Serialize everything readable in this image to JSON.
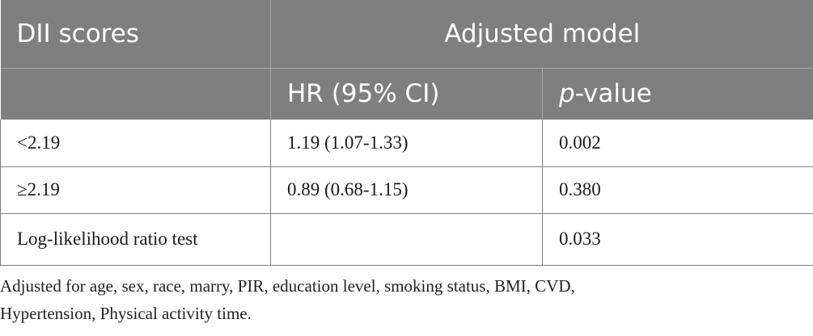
{
  "table": {
    "header": {
      "col1_label": "DII scores",
      "group_label": "Adjusted model",
      "hr_label": "HR (95% CI)",
      "p_prefix": "p",
      "p_suffix": "-value"
    },
    "rows": [
      {
        "label": "<2.19",
        "hr": "1.19 (1.07-1.33)",
        "p": "0.002"
      },
      {
        "label": "≥2.19",
        "hr": "0.89 (0.68-1.15)",
        "p": "0.380"
      },
      {
        "label": "Log-likelihood ratio test",
        "hr": "",
        "p": "0.033"
      }
    ]
  },
  "footnote": {
    "line1": "Adjusted for age, sex, race, marry, PIR, education level, smoking status, BMI, CVD,",
    "line2": "Hypertension, Physical activity time."
  },
  "colors": {
    "header_bg": "#7f7f7f",
    "header_text": "#ffffff",
    "border": "#7f7f7f"
  }
}
